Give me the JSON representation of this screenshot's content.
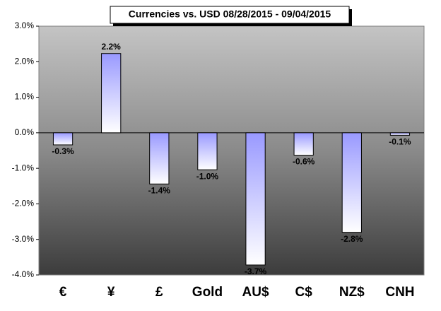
{
  "chart_data": {
    "type": "bar",
    "title": "Currencies vs. USD 08/28/2015 - 09/04/2015",
    "categories": [
      "€",
      "¥",
      "£",
      "Gold",
      "AU$",
      "C$",
      "NZ$",
      "CNH"
    ],
    "values": [
      -0.34,
      2.23,
      -1.44,
      -1.04,
      -3.72,
      -0.63,
      -2.8,
      -0.07
    ],
    "value_labels": [
      "-0.3%",
      "2.2%",
      "-1.4%",
      "-1.0%",
      "-3.7%",
      "-0.6%",
      "-2.8%",
      "-0.1%"
    ],
    "color": "#9999ff",
    "ylim": [
      -4,
      3
    ],
    "yticks": [
      {
        "value": -4,
        "label": "-4.0%"
      },
      {
        "value": -3,
        "label": "-3.0%"
      },
      {
        "value": -2,
        "label": "-2.0%"
      },
      {
        "value": -1,
        "label": "-1.0%"
      },
      {
        "value": 0,
        "label": "0.0%"
      },
      {
        "value": 1,
        "label": "1.0%"
      },
      {
        "value": 2,
        "label": "2.0%"
      },
      {
        "value": 3,
        "label": "3.0%"
      }
    ],
    "grid": false
  }
}
